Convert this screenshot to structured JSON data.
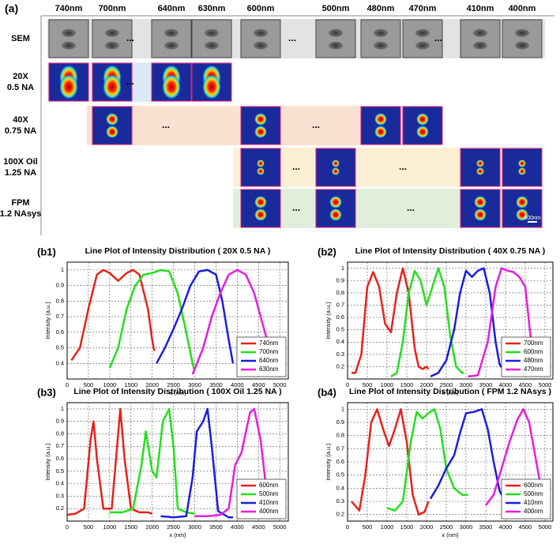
{
  "panel_a": {
    "label": "(a)",
    "ellipsis": "...",
    "scale_bar": "600nm",
    "columns": [
      "740nm",
      "700nm",
      "640nm",
      "630nm",
      "600nm",
      "500nm",
      "480nm",
      "470nm",
      "410nm",
      "400nm"
    ],
    "rows": [
      {
        "lines": [
          "SEM"
        ]
      },
      {
        "lines": [
          "20X",
          "0.5 NA"
        ]
      },
      {
        "lines": [
          "40X",
          "0.75 NA"
        ]
      },
      {
        "lines": [
          "100X Oil",
          "1.25 NA"
        ]
      },
      {
        "lines": [
          "FPM",
          "1.2 NAsys"
        ]
      }
    ]
  },
  "chart_data": [
    {
      "type": "line",
      "label": "(b1)",
      "title": "Line Plot of Intensity Distribution ( 20X 0.5 NA )",
      "x_label": "x (nm)",
      "y_label": "Intensity (a.u.)",
      "xlim": [
        0,
        5200
      ],
      "xticks": [
        0,
        500,
        1000,
        1500,
        2000,
        2500,
        3000,
        3500,
        4000,
        4500,
        5000
      ],
      "ylim": [
        0.3,
        1.05
      ],
      "yticks": [
        0.4,
        0.5,
        0.6,
        0.7,
        0.8,
        0.9,
        1
      ],
      "grid": true,
      "series": [
        {
          "name": "740nm",
          "color": "#e8211c",
          "x": [
            100,
            300,
            500,
            700,
            850,
            1000,
            1200,
            1400,
            1550,
            1700,
            1900,
            2000,
            2050
          ],
          "values": [
            0.42,
            0.5,
            0.75,
            0.97,
            1.0,
            0.98,
            0.93,
            0.98,
            1.0,
            0.97,
            0.75,
            0.55,
            0.48
          ]
        },
        {
          "name": "700nm",
          "color": "#22e01c",
          "x": [
            1000,
            1200,
            1400,
            1600,
            1800,
            2000,
            2200,
            2400,
            2600,
            2800,
            2950,
            3000
          ],
          "values": [
            0.37,
            0.5,
            0.75,
            0.9,
            0.97,
            0.98,
            1.0,
            0.99,
            0.85,
            0.6,
            0.4,
            0.35
          ]
        },
        {
          "name": "640nm",
          "color": "#1c1ce0",
          "x": [
            2100,
            2300,
            2500,
            2700,
            2900,
            3100,
            3300,
            3500,
            3650,
            3800,
            3900
          ],
          "values": [
            0.4,
            0.5,
            0.62,
            0.75,
            0.9,
            0.99,
            1.0,
            0.97,
            0.8,
            0.55,
            0.4
          ]
        },
        {
          "name": "630nm",
          "color": "#e81ce0",
          "x": [
            2950,
            3200,
            3400,
            3600,
            3800,
            4000,
            4200,
            4400,
            4550,
            4700,
            4800
          ],
          "values": [
            0.33,
            0.5,
            0.7,
            0.85,
            0.97,
            1.0,
            0.97,
            0.85,
            0.7,
            0.55,
            0.45
          ]
        }
      ]
    },
    {
      "type": "line",
      "label": "(b2)",
      "title": "Line Plot of Intensity Distribution ( 40X 0.75 NA )",
      "x_label": "x (nm)",
      "y_label": "Intensity (a.u.)",
      "xlim": [
        0,
        5200
      ],
      "xticks": [
        0,
        500,
        1000,
        1500,
        2000,
        2500,
        3000,
        3500,
        4000,
        4500,
        5000
      ],
      "ylim": [
        0.1,
        1.05
      ],
      "yticks": [
        0.2,
        0.3,
        0.4,
        0.5,
        0.6,
        0.7,
        0.8,
        0.9,
        1
      ],
      "grid": true,
      "series": [
        {
          "name": "700nm",
          "color": "#e8211c",
          "x": [
            100,
            200,
            350,
            500,
            650,
            800,
            950,
            1100,
            1250,
            1400,
            1550,
            1700,
            1800,
            1900,
            2000,
            2050
          ],
          "values": [
            0.15,
            0.15,
            0.3,
            0.85,
            0.97,
            0.85,
            0.55,
            0.48,
            0.8,
            1.0,
            0.8,
            0.35,
            0.2,
            0.18,
            0.2,
            0.18
          ]
        },
        {
          "name": "600nm",
          "color": "#22e01c",
          "x": [
            1100,
            1250,
            1400,
            1550,
            1700,
            1850,
            2000,
            2150,
            2300,
            2450,
            2600,
            2750,
            2900,
            2950
          ],
          "values": [
            0.12,
            0.15,
            0.4,
            0.8,
            0.98,
            0.9,
            0.7,
            0.85,
            1.0,
            0.85,
            0.45,
            0.2,
            0.15,
            0.15
          ]
        },
        {
          "name": "480nm",
          "color": "#1c1ce0",
          "x": [
            2100,
            2300,
            2500,
            2700,
            2850,
            3000,
            3150,
            3300,
            3450,
            3600,
            3750,
            3850,
            4000
          ],
          "values": [
            0.12,
            0.15,
            0.25,
            0.5,
            0.8,
            0.98,
            0.93,
            0.98,
            1.0,
            0.8,
            0.4,
            0.22,
            0.15
          ]
        },
        {
          "name": "470nm",
          "color": "#e81ce0",
          "x": [
            3050,
            3300,
            3550,
            3750,
            3900,
            4050,
            4200,
            4350,
            4500,
            4650,
            4750
          ],
          "values": [
            0.12,
            0.13,
            0.4,
            0.85,
            1.0,
            0.98,
            0.97,
            0.93,
            0.85,
            0.4,
            0.2
          ]
        }
      ]
    },
    {
      "type": "line",
      "label": "(b3)",
      "title": "Line Plot of Intensity Distribution ( 100X Oil 1.25 NA )",
      "x_label": "x (nm)",
      "y_label": "Intensity (a.u.)",
      "xlim": [
        0,
        5200
      ],
      "xticks": [
        0,
        500,
        1000,
        1500,
        2000,
        2500,
        3000,
        3500,
        4000,
        4500,
        5000
      ],
      "ylim": [
        0.1,
        1.05
      ],
      "yticks": [
        0.2,
        0.3,
        0.4,
        0.5,
        0.6,
        0.7,
        0.8,
        0.9,
        1
      ],
      "grid": true,
      "series": [
        {
          "name": "600nm",
          "color": "#e8211c",
          "x": [
            0,
            200,
            400,
            550,
            620,
            700,
            850,
            1050,
            1150,
            1250,
            1350,
            1500,
            1700,
            1900,
            2000
          ],
          "values": [
            0.15,
            0.16,
            0.2,
            0.75,
            0.9,
            0.6,
            0.2,
            0.2,
            0.6,
            1.0,
            0.6,
            0.2,
            0.17,
            0.17,
            0.16
          ]
        },
        {
          "name": "500nm",
          "color": "#22e01c",
          "x": [
            1000,
            1300,
            1550,
            1750,
            1850,
            2000,
            2100,
            2250,
            2400,
            2500,
            2600,
            2800,
            3000
          ],
          "values": [
            0.17,
            0.17,
            0.2,
            0.55,
            0.82,
            0.5,
            0.45,
            0.9,
            1.0,
            0.7,
            0.2,
            0.17,
            0.16
          ]
        },
        {
          "name": "410nm",
          "color": "#1c1ce0",
          "x": [
            2200,
            2500,
            2800,
            2950,
            3050,
            3200,
            3300,
            3400,
            3550,
            3800,
            3900
          ],
          "values": [
            0.14,
            0.13,
            0.14,
            0.45,
            0.82,
            0.9,
            1.0,
            0.7,
            0.18,
            0.13,
            0.13
          ]
        },
        {
          "name": "400nm",
          "color": "#e81ce0",
          "x": [
            3000,
            3300,
            3600,
            3800,
            3950,
            4100,
            4300,
            4400,
            4550,
            4700,
            4850,
            5000
          ],
          "values": [
            0.14,
            0.14,
            0.15,
            0.2,
            0.55,
            0.65,
            0.97,
            1.0,
            0.75,
            0.3,
            0.17,
            0.15
          ]
        }
      ]
    },
    {
      "type": "line",
      "label": "(b4)",
      "title": "Line Plot of Intensity Distribution ( FPM 1.2 NAsys )",
      "x_label": "x (nm)",
      "y_label": "Intensity (a.u.)",
      "xlim": [
        0,
        5200
      ],
      "xticks": [
        0,
        500,
        1000,
        1500,
        2000,
        2500,
        3000,
        3500,
        4000,
        4500,
        5000
      ],
      "ylim": [
        0.15,
        1.05
      ],
      "yticks": [
        0.2,
        0.3,
        0.4,
        0.5,
        0.6,
        0.7,
        0.8,
        0.9,
        1
      ],
      "grid": true,
      "series": [
        {
          "name": "600nm",
          "color": "#e8211c",
          "x": [
            100,
            300,
            450,
            600,
            750,
            900,
            1050,
            1200,
            1350,
            1500,
            1650,
            1800,
            1950,
            2050
          ],
          "values": [
            0.3,
            0.23,
            0.5,
            0.9,
            1.0,
            0.85,
            0.72,
            0.85,
            1.0,
            0.75,
            0.35,
            0.2,
            0.22,
            0.3
          ]
        },
        {
          "name": "500nm",
          "color": "#22e01c",
          "x": [
            1000,
            1200,
            1400,
            1600,
            1750,
            1900,
            2050,
            2200,
            2350,
            2500,
            2700,
            2900,
            3050
          ],
          "values": [
            0.25,
            0.23,
            0.3,
            0.75,
            0.98,
            0.93,
            0.97,
            1.0,
            0.85,
            0.55,
            0.4,
            0.35,
            0.35
          ]
        },
        {
          "name": "410nm",
          "color": "#1c1ce0",
          "x": [
            2100,
            2300,
            2500,
            2700,
            2850,
            3000,
            3200,
            3400,
            3550,
            3700,
            3850,
            4000
          ],
          "values": [
            0.32,
            0.42,
            0.55,
            0.65,
            0.82,
            0.97,
            0.98,
            1.0,
            0.85,
            0.6,
            0.38,
            0.3
          ]
        },
        {
          "name": "400nm",
          "color": "#e81ce0",
          "x": [
            3500,
            3700,
            3900,
            4100,
            4300,
            4450,
            4600,
            4750,
            4900,
            4950
          ],
          "values": [
            0.27,
            0.35,
            0.55,
            0.75,
            0.92,
            1.0,
            0.9,
            0.65,
            0.4,
            0.35
          ]
        }
      ]
    }
  ]
}
